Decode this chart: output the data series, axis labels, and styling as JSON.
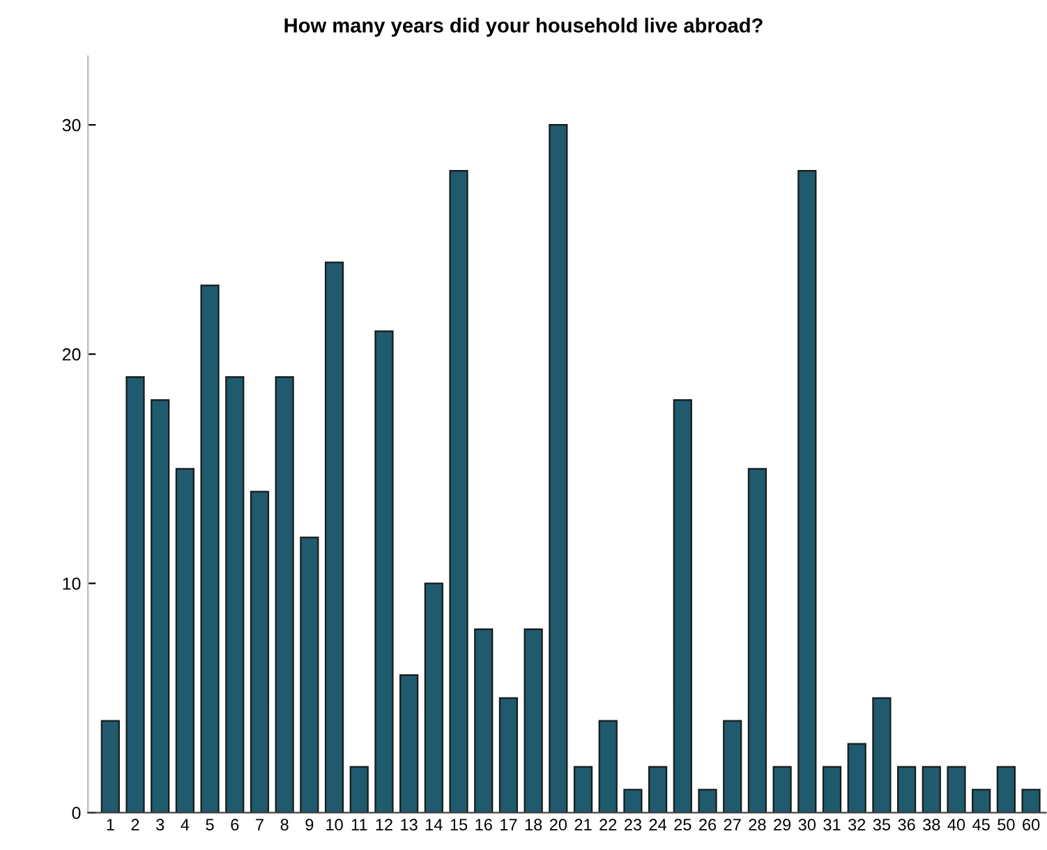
{
  "chart_data": {
    "type": "bar",
    "title": "How many years did your household live abroad?",
    "categories": [
      "1",
      "2",
      "3",
      "4",
      "5",
      "6",
      "7",
      "8",
      "9",
      "10",
      "11",
      "12",
      "13",
      "14",
      "15",
      "16",
      "17",
      "18",
      "20",
      "21",
      "22",
      "23",
      "24",
      "25",
      "26",
      "27",
      "28",
      "29",
      "30",
      "31",
      "32",
      "35",
      "36",
      "38",
      "40",
      "45",
      "50",
      "60"
    ],
    "values": [
      4,
      19,
      18,
      15,
      23,
      19,
      14,
      19,
      12,
      24,
      2,
      21,
      6,
      10,
      28,
      8,
      5,
      8,
      30,
      2,
      4,
      1,
      2,
      18,
      1,
      4,
      15,
      2,
      28,
      2,
      3,
      5,
      2,
      2,
      2,
      1,
      2,
      1
    ],
    "color": "#1f5a6e",
    "ylim": [
      0,
      33
    ],
    "yticks": [
      0,
      10,
      20,
      30
    ],
    "grid": false,
    "legend": false
  }
}
